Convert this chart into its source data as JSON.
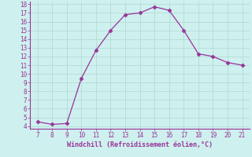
{
  "x": [
    7,
    8,
    9,
    10,
    11,
    12,
    13,
    14,
    15,
    16,
    17,
    18,
    19,
    20,
    21
  ],
  "y": [
    4.5,
    4.2,
    4.3,
    9.5,
    12.7,
    15.0,
    16.8,
    17.0,
    17.7,
    17.3,
    15.0,
    12.3,
    12.0,
    11.3,
    11.0
  ],
  "line_color": "#993399",
  "marker": "D",
  "marker_size": 2.5,
  "xlabel": "Windchill (Refroidissement éolien,°C)",
  "xlabel_color": "#993399",
  "bg_color": "#cef0ee",
  "grid_color": "#b0d8d0",
  "axis_color": "#993399",
  "tick_color": "#993399",
  "ylim": [
    4,
    18
  ],
  "xlim": [
    7,
    21
  ],
  "yticks": [
    4,
    5,
    6,
    7,
    8,
    9,
    10,
    11,
    12,
    13,
    14,
    15,
    16,
    17,
    18
  ],
  "xticks": [
    7,
    8,
    9,
    10,
    11,
    12,
    13,
    14,
    15,
    16,
    17,
    18,
    19,
    20,
    21
  ]
}
